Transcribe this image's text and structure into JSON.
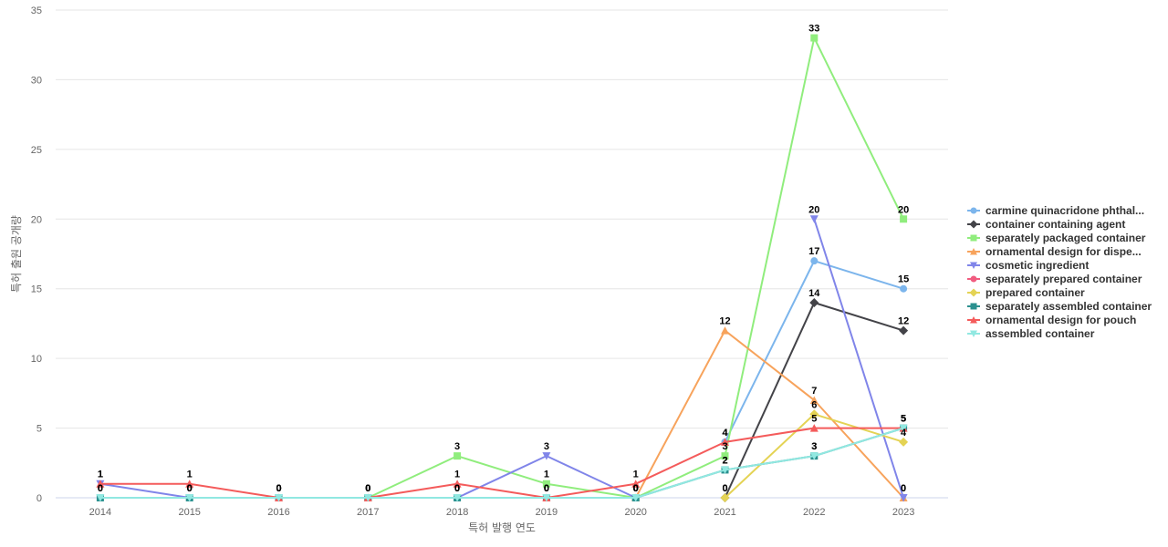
{
  "chart_data": {
    "type": "line",
    "xlabel": "특허 발행 연도",
    "ylabel": "특허 출원 공개량",
    "ylim": [
      0,
      35
    ],
    "yticks": [
      0,
      5,
      10,
      15,
      20,
      25,
      30,
      35
    ],
    "categories": [
      "2014",
      "2015",
      "2016",
      "2017",
      "2018",
      "2019",
      "2020",
      "2021",
      "2022",
      "2023"
    ],
    "grid": true,
    "legend_position": "right",
    "series": [
      {
        "name": "carmine quinacridone phthal...",
        "color": "#7cb5ec",
        "marker": "circle",
        "values": [
          null,
          null,
          null,
          null,
          null,
          null,
          null,
          4,
          17,
          15
        ]
      },
      {
        "name": "container containing agent",
        "color": "#434348",
        "marker": "diamond",
        "values": [
          null,
          null,
          null,
          null,
          null,
          null,
          null,
          0,
          14,
          12
        ]
      },
      {
        "name": "separately packaged container",
        "color": "#90ed7d",
        "marker": "square",
        "values": [
          null,
          null,
          null,
          0,
          3,
          1,
          0,
          3,
          33,
          20
        ]
      },
      {
        "name": "ornamental design for dispe...",
        "color": "#f7a35c",
        "marker": "triangle",
        "values": [
          null,
          null,
          null,
          null,
          null,
          null,
          0,
          12,
          7,
          0
        ]
      },
      {
        "name": "cosmetic ingredient",
        "color": "#8085e9",
        "marker": "triangle-down",
        "values": [
          1,
          0,
          0,
          null,
          0,
          3,
          0,
          null,
          20,
          0
        ]
      },
      {
        "name": "separately prepared container",
        "color": "#f15c80",
        "marker": "circle",
        "values": [
          null,
          null,
          null,
          null,
          null,
          null,
          null,
          null,
          null,
          null
        ]
      },
      {
        "name": "prepared container",
        "color": "#e4d354",
        "marker": "diamond",
        "values": [
          null,
          null,
          null,
          null,
          null,
          null,
          null,
          0,
          6,
          4
        ]
      },
      {
        "name": "separately assembled container",
        "color": "#2b908f",
        "marker": "square",
        "values": [
          0,
          0,
          0,
          0,
          0,
          0,
          0,
          2,
          3,
          5
        ]
      },
      {
        "name": "ornamental design for pouch",
        "color": "#f45b5b",
        "marker": "triangle",
        "values": [
          1,
          1,
          0,
          0,
          1,
          0,
          1,
          4,
          5,
          5
        ]
      },
      {
        "name": "assembled container",
        "color": "#91e8e1",
        "marker": "triangle-down",
        "values": [
          0,
          0,
          0,
          0,
          0,
          0,
          0,
          2,
          3,
          5
        ]
      }
    ]
  }
}
